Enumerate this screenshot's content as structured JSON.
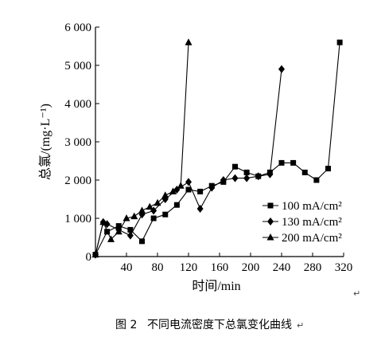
{
  "chart_data": {
    "type": "line",
    "xlabel": "时间/min",
    "ylabel": "总氯/(mg·L⁻¹)",
    "xlim": [
      0,
      320
    ],
    "ylim": [
      0,
      6000
    ],
    "x_ticks": [
      {
        "value": 40,
        "label": "40"
      },
      {
        "value": 80,
        "label": "80"
      },
      {
        "value": 120,
        "label": "120"
      },
      {
        "value": 160,
        "label": "160"
      },
      {
        "value": 200,
        "label": "200"
      },
      {
        "value": 240,
        "label": "240"
      },
      {
        "value": 280,
        "label": "280"
      },
      {
        "value": 320,
        "label": "320"
      }
    ],
    "y_ticks": [
      {
        "value": 0,
        "label": "0"
      },
      {
        "value": 1000,
        "label": "1 000"
      },
      {
        "value": 2000,
        "label": "2 000"
      },
      {
        "value": 3000,
        "label": "3 000"
      },
      {
        "value": 4000,
        "label": "4 000"
      },
      {
        "value": 5000,
        "label": "5 000"
      },
      {
        "value": 6000,
        "label": "6 000"
      }
    ],
    "grid": false,
    "legend_position": "lower-right",
    "series": [
      {
        "name": "100 mA/cm²",
        "marker": "square",
        "x": [
          0,
          15,
          30,
          45,
          60,
          75,
          90,
          105,
          120,
          135,
          150,
          165,
          180,
          195,
          210,
          225,
          240,
          255,
          270,
          285,
          300,
          315
        ],
        "y": [
          50,
          650,
          800,
          700,
          400,
          1000,
          1100,
          1350,
          1750,
          1700,
          1850,
          1950,
          2350,
          2200,
          2100,
          2200,
          2450,
          2450,
          2200,
          2000,
          2300,
          5600
        ]
      },
      {
        "name": "130 mA/cm²",
        "marker": "diamond",
        "x": [
          0,
          10,
          15,
          30,
          45,
          60,
          75,
          90,
          105,
          120,
          135,
          150,
          165,
          180,
          195,
          210,
          225,
          240
        ],
        "y": [
          50,
          900,
          850,
          700,
          550,
          1100,
          1200,
          1500,
          1750,
          1950,
          1250,
          1800,
          2000,
          2050,
          2050,
          2100,
          2150,
          4900
        ]
      },
      {
        "name": "200 mA/cm²",
        "marker": "triangle",
        "x": [
          0,
          10,
          20,
          30,
          40,
          50,
          60,
          70,
          80,
          90,
          100,
          110,
          120
        ],
        "y": [
          50,
          900,
          450,
          650,
          1000,
          1050,
          1200,
          1300,
          1400,
          1600,
          1700,
          1850,
          5600
        ]
      }
    ]
  },
  "caption": {
    "label": "图 2",
    "text": "不同电流密度下总氯变化曲线"
  },
  "paragraph_mark": "↵"
}
